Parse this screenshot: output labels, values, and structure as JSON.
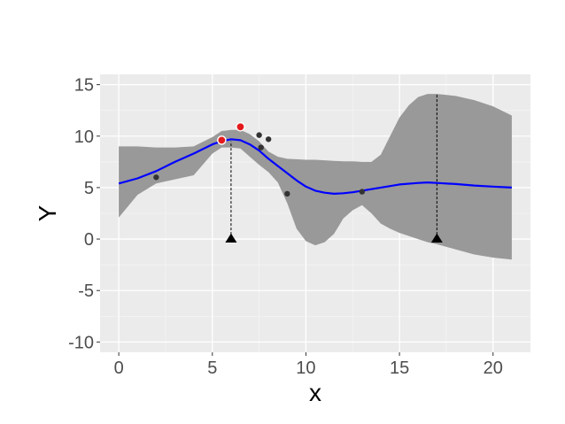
{
  "chart_data": {
    "type": "line",
    "title": "",
    "xlabel": "x",
    "ylabel": "Y",
    "xlim": [
      -1,
      22
    ],
    "ylim": [
      -11,
      16
    ],
    "x_ticks": [
      0,
      5,
      10,
      15,
      20
    ],
    "y_ticks": [
      -10,
      -5,
      0,
      5,
      10,
      15
    ],
    "x_tick_labels": [
      "0",
      "5",
      "10",
      "15",
      "20"
    ],
    "y_tick_labels": [
      "-10",
      "-5",
      "0",
      "5",
      "10",
      "15"
    ],
    "grid": true,
    "legend": "none",
    "colors": {
      "panel_bg": "#ebebeb",
      "grid_major": "#ffffff",
      "grid_minor": "#f5f5f5",
      "band_fill": "#999999",
      "mean_line": "#0000ff",
      "observed_point": "#333333",
      "highlighted_point": "#e31a1c",
      "triangle": "#000000"
    },
    "mean_curve": {
      "x": [
        0,
        1,
        2,
        3,
        4,
        5,
        5.5,
        6,
        6.5,
        7,
        7.5,
        8,
        8.5,
        9,
        9.5,
        10,
        10.5,
        11,
        11.5,
        12,
        12.5,
        13,
        14,
        15,
        16,
        16.5,
        17,
        18,
        19,
        20,
        21
      ],
      "y": [
        5.4,
        5.9,
        6.6,
        7.5,
        8.3,
        9.2,
        9.5,
        9.7,
        9.6,
        9.2,
        8.6,
        7.8,
        7.1,
        6.4,
        5.7,
        5.1,
        4.7,
        4.5,
        4.4,
        4.45,
        4.55,
        4.7,
        5.0,
        5.3,
        5.45,
        5.5,
        5.45,
        5.35,
        5.2,
        5.1,
        5.0
      ]
    },
    "confidence_band": {
      "x": [
        0,
        1,
        2,
        3,
        4,
        5,
        5.5,
        6,
        6.5,
        7,
        7.5,
        8,
        8.5,
        9,
        9.5,
        10,
        10.5,
        11,
        11.5,
        12,
        12.5,
        13,
        13.5,
        14,
        14.5,
        15,
        15.5,
        16,
        16.5,
        17,
        18,
        19,
        20,
        21
      ],
      "upper": [
        9.0,
        9.0,
        8.9,
        8.9,
        9.0,
        9.9,
        10.5,
        10.6,
        10.6,
        10.2,
        9.5,
        8.5,
        8.0,
        7.8,
        7.75,
        7.7,
        7.7,
        7.65,
        7.6,
        7.55,
        7.55,
        7.5,
        7.5,
        8.2,
        10.0,
        11.8,
        13.0,
        13.8,
        14.1,
        14.1,
        13.9,
        13.5,
        12.9,
        12.0
      ],
      "lower": [
        2.1,
        4.3,
        5.4,
        5.8,
        6.2,
        8.3,
        8.9,
        8.9,
        8.8,
        8.0,
        7.2,
        6.5,
        5.5,
        3.5,
        1.0,
        -0.2,
        -0.6,
        -0.3,
        0.5,
        2.0,
        2.8,
        3.3,
        2.5,
        1.5,
        1.0,
        0.6,
        0.3,
        0.0,
        -0.3,
        -0.5,
        -1.0,
        -1.5,
        -1.8,
        -2.0
      ]
    },
    "observed_points": {
      "x": [
        2.0,
        7.5,
        7.6,
        8.0,
        9.0,
        13.0
      ],
      "y": [
        6.0,
        10.1,
        8.9,
        9.7,
        4.4,
        4.6
      ]
    },
    "highlighted_points": {
      "x": [
        5.5,
        6.5
      ],
      "y": [
        9.6,
        10.9
      ]
    },
    "markers": [
      {
        "x": 6.0,
        "y": 0,
        "line_to": 9.5
      },
      {
        "x": 17.0,
        "y": 0,
        "line_to": 14.1
      }
    ]
  }
}
